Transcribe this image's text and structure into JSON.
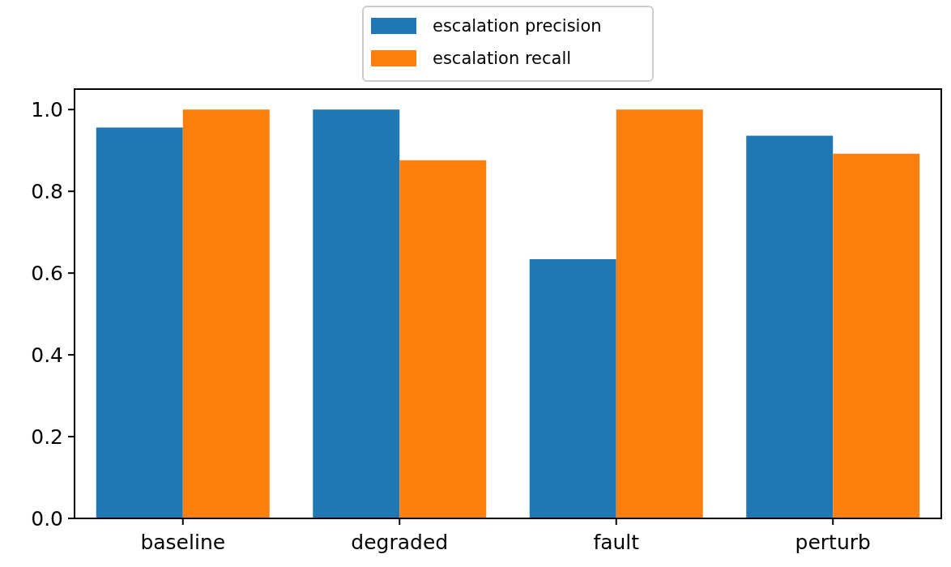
{
  "chart_data": {
    "type": "bar",
    "categories": [
      "baseline",
      "degraded",
      "fault",
      "perturb"
    ],
    "series": [
      {
        "name": "escalation precision",
        "color": "#1f77b4",
        "values": [
          0.956,
          1.0,
          0.634,
          0.936
        ]
      },
      {
        "name": "escalation recall",
        "color": "#ff7f0e",
        "values": [
          1.0,
          0.876,
          1.0,
          0.892
        ]
      }
    ],
    "ylim": [
      0,
      1.05
    ],
    "yticks": [
      {
        "value": 0,
        "label": "0.0"
      },
      {
        "value": 0.2,
        "label": "0.2"
      },
      {
        "value": 0.4,
        "label": "0.4"
      },
      {
        "value": 0.6,
        "label": "0.6"
      },
      {
        "value": 0.8,
        "label": "0.8"
      },
      {
        "value": 1,
        "label": "1.0"
      }
    ],
    "grid": false,
    "legend": "top"
  }
}
